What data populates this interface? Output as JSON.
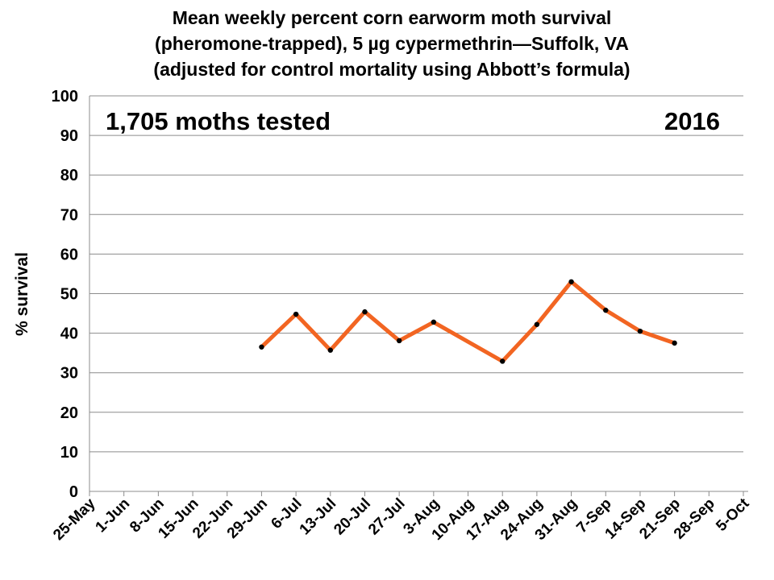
{
  "chart_data": {
    "type": "line",
    "title_lines": [
      "Mean weekly percent corn earworm moth survival",
      "(pheromone-trapped), 5 µg cypermethrin—Suffolk, VA",
      "(adjusted for control mortality using Abbott’s formula)"
    ],
    "xlabel": "",
    "ylabel": "% survival",
    "ylim": [
      0,
      100
    ],
    "y_ticks": [
      "0",
      "10",
      "20",
      "30",
      "40",
      "50",
      "60",
      "70",
      "80",
      "90",
      "100"
    ],
    "categories": [
      "25-May",
      "1-Jun",
      "8-Jun",
      "15-Jun",
      "22-Jun",
      "29-Jun",
      "6-Jul",
      "13-Jul",
      "20-Jul",
      "27-Jul",
      "3-Aug",
      "10-Aug",
      "17-Aug",
      "24-Aug",
      "31-Aug",
      "7-Sep",
      "14-Sep",
      "21-Sep",
      "28-Sep",
      "5-Oct"
    ],
    "series": [
      {
        "color": "#f26522",
        "values": [
          null,
          null,
          null,
          null,
          null,
          36.5,
          44.8,
          35.7,
          45.4,
          38.1,
          42.8,
          null,
          32.9,
          42.2,
          53.0,
          45.8,
          40.5,
          37.5,
          null,
          null
        ]
      }
    ],
    "grid": true,
    "annotations": {
      "count": "1,705 moths tested",
      "year": "2016"
    }
  }
}
